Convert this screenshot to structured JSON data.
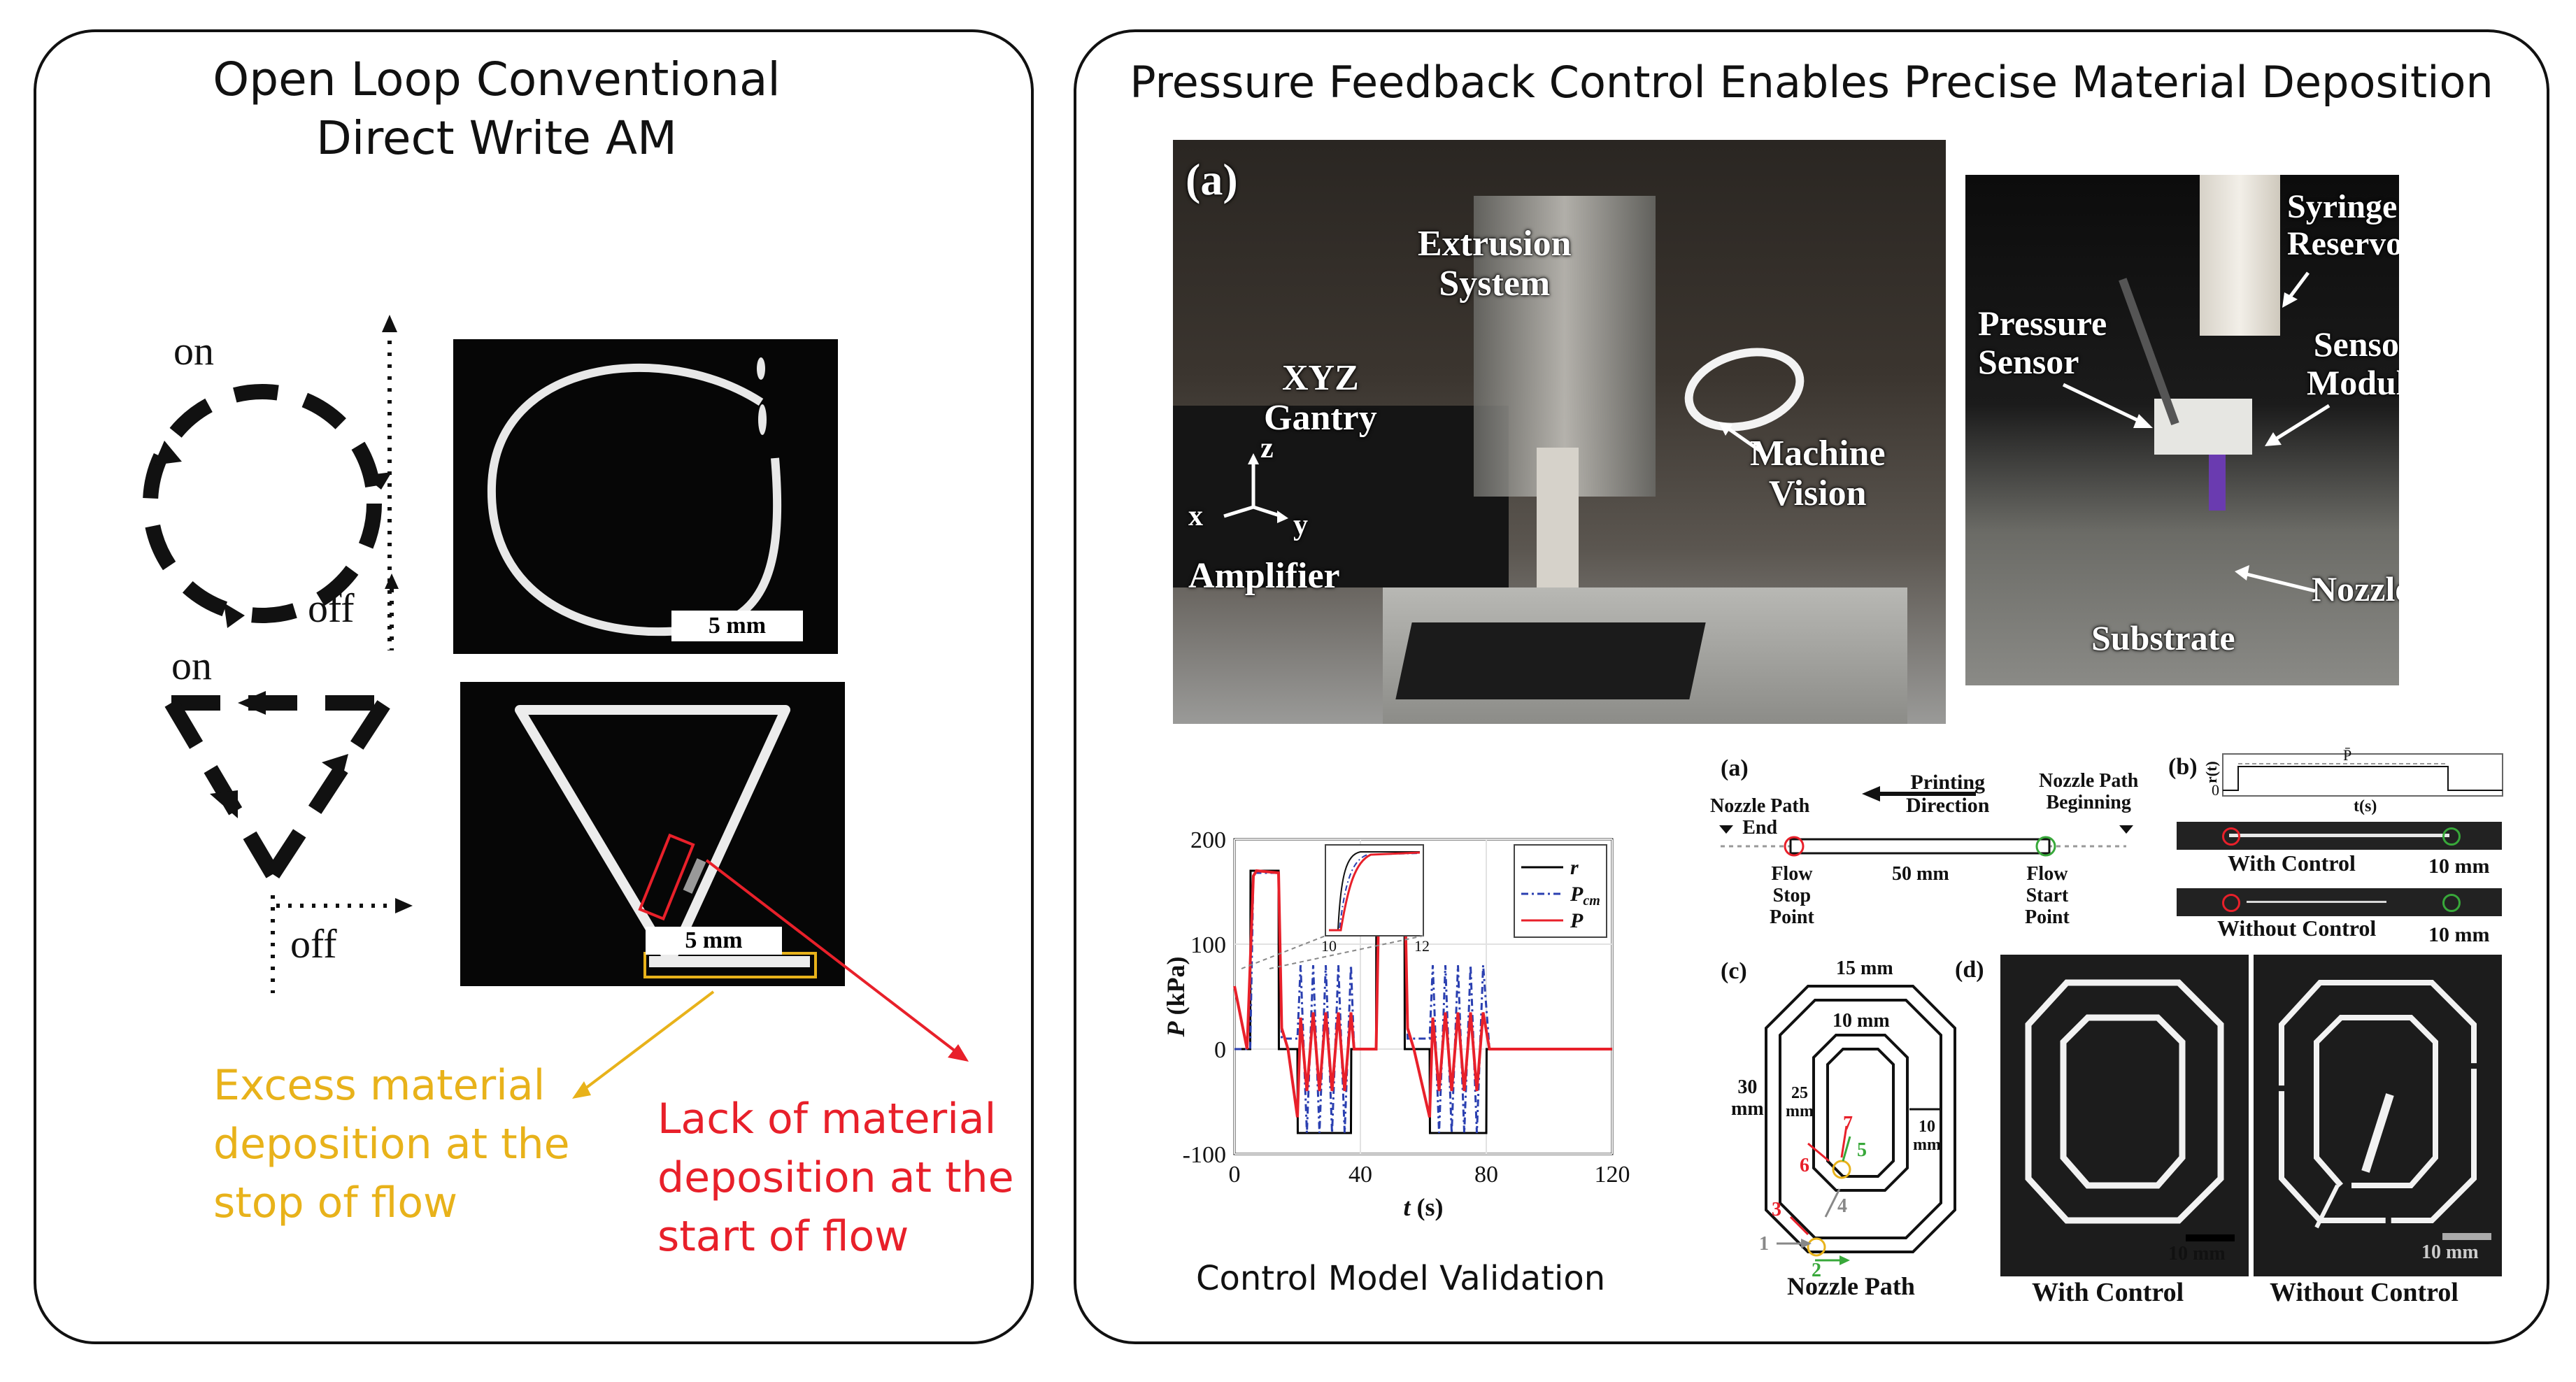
{
  "left_panel": {
    "title_line1": "Open Loop Conventional",
    "title_line2": "Direct Write AM",
    "circle_diagram": {
      "on_label": "on",
      "off_label": "off"
    },
    "triangle_diagram": {
      "on_label": "on",
      "off_label": "off"
    },
    "circle_photo": {
      "scale_label": "5 mm"
    },
    "triangle_photo": {
      "scale_label": "5 mm"
    },
    "annotation_excess": {
      "line1": "Excess material",
      "line2": "deposition at the",
      "line3": "stop of flow",
      "color": "#e8b21a"
    },
    "annotation_lack": {
      "line1": "Lack of material",
      "line2": "deposition at the",
      "line3": "start of flow",
      "color": "#e8202a"
    }
  },
  "right_panel": {
    "title": "Pressure Feedback Control Enables Precise Material Deposition",
    "photo_a": {
      "tag": "(a)",
      "labels": {
        "extrusion1": "Extrusion",
        "extrusion2": "System",
        "xyz1": "XYZ",
        "xyz2": "Gantry",
        "mv1": "Machine",
        "mv2": "Vision",
        "amplifier": "Amplifier",
        "axis_x": "x",
        "axis_y": "y",
        "axis_z": "z"
      }
    },
    "photo_b": {
      "labels": {
        "syringe1": "Syringe",
        "syringe2": "Reservoir",
        "pressure1": "Pressure",
        "pressure2": "Sensor",
        "module1": "Sensor",
        "module2": "Module",
        "nozzle": "Nozzle",
        "substrate": "Substrate"
      }
    },
    "control_chart": {
      "caption": "Control Model Validation",
      "ylabel_var": "P",
      "ylabel_unit": "(kPa)",
      "xlabel_var": "t",
      "xlabel_unit": "(s)",
      "inset_ticks": [
        "10",
        "12"
      ]
    },
    "figure_a": {
      "tag": "(a)",
      "nozzle_path_end1": "Nozzle Path",
      "nozzle_path_end2": "End",
      "printing1": "Printing",
      "printing2": "Direction",
      "nozzle_path_begin1": "Nozzle Path",
      "nozzle_path_begin2": "Beginning",
      "flow_stop1": "Flow",
      "flow_stop2": "Stop",
      "flow_stop3": "Point",
      "length": "50 mm",
      "flow_start1": "Flow",
      "flow_start2": "Start",
      "flow_start3": "Point"
    },
    "figure_b": {
      "tag": "(b)",
      "ylabel": "r(t)",
      "zero": "0",
      "p_label": "P̄",
      "xlabel": "t(s)",
      "with_control": "With Control",
      "without_control": "Without Control",
      "scale1": "10 mm",
      "scale2": "10 mm"
    },
    "figure_c": {
      "tag": "(c)",
      "dim_top": "15 mm",
      "dim_inner": "10 mm",
      "dim_left1": "30",
      "dim_left2": "mm",
      "dim_inner_h1": "25",
      "dim_inner_h2": "mm",
      "dim_gap1": "10",
      "dim_gap2": "mm",
      "steps": [
        "1",
        "2",
        "3",
        "4",
        "5",
        "6",
        "7"
      ],
      "caption": "Nozzle Path"
    },
    "figure_d": {
      "tag": "(d)",
      "with_control": "With Control",
      "without_control": "Without Control",
      "scale1": "10 mm",
      "scale2": "10 mm"
    }
  },
  "chart_data": {
    "type": "line",
    "xlabel": "t (s)",
    "ylabel": "P (kPa)",
    "xlim": [
      0,
      120
    ],
    "ylim": [
      -100,
      200
    ],
    "xticks": [
      0,
      40,
      80,
      120
    ],
    "yticks": [
      -100,
      0,
      100,
      200
    ],
    "legend_position": "top-right",
    "series": [
      {
        "name": "r",
        "color": "#000000",
        "style": "solid",
        "x": [
          0,
          5,
          5.1,
          14,
          14.1,
          20,
          20.1,
          37,
          37.1,
          45,
          45.1,
          54,
          54.1,
          62,
          62.1,
          80,
          80.1,
          88,
          88.1,
          120
        ],
        "y": [
          0,
          0,
          170,
          170,
          0,
          0,
          -80,
          -80,
          0,
          0,
          170,
          170,
          0,
          0,
          -80,
          -80,
          0,
          0,
          0,
          0
        ]
      },
      {
        "name": "P_cm",
        "color": "#2a3fb0",
        "style": "dash-dot",
        "x": [
          0,
          5,
          6,
          14,
          15,
          20,
          21,
          23,
          25,
          27,
          29,
          31,
          33,
          35,
          37,
          38,
          45,
          46,
          54,
          55,
          62,
          63,
          65,
          67,
          69,
          71,
          73,
          75,
          77,
          79,
          81,
          88,
          120
        ],
        "y": [
          0,
          0,
          168,
          168,
          10,
          10,
          80,
          -80,
          80,
          -80,
          80,
          -80,
          80,
          -80,
          80,
          0,
          0,
          168,
          168,
          10,
          10,
          80,
          -80,
          80,
          -80,
          80,
          -80,
          80,
          -80,
          80,
          0,
          0,
          0
        ]
      },
      {
        "name": "P",
        "color": "#e8202a",
        "style": "solid",
        "x": [
          0,
          4,
          6,
          7,
          14,
          15,
          17,
          20,
          21,
          23,
          25,
          27,
          29,
          31,
          33,
          35,
          37,
          38,
          42,
          45,
          46,
          47,
          54,
          55,
          57,
          62,
          63,
          65,
          67,
          69,
          71,
          73,
          75,
          77,
          79,
          81,
          85,
          88,
          120
        ],
        "y": [
          60,
          0,
          165,
          170,
          168,
          20,
          0,
          -65,
          30,
          -40,
          35,
          -40,
          35,
          -40,
          35,
          -40,
          35,
          0,
          0,
          0,
          165,
          170,
          168,
          20,
          0,
          -65,
          30,
          -40,
          35,
          -40,
          35,
          -40,
          35,
          -40,
          35,
          0,
          0,
          0,
          0
        ]
      }
    ],
    "inset": {
      "xlim": [
        10,
        12
      ],
      "xticks": [
        10,
        12
      ]
    }
  }
}
